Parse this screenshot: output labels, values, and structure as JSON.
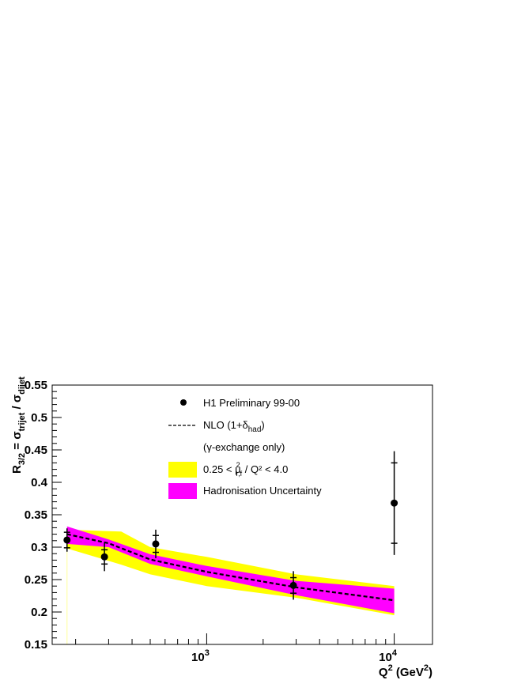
{
  "chart_data": {
    "type": "scatter",
    "title": "",
    "xlabel": {
      "main": "Q",
      "sup": "2",
      "unit": " (GeV",
      "unit_sup": "2",
      "close": ")"
    },
    "ylabel": {
      "main": "R",
      "main_sub": "3/2",
      "eq": " = σ",
      "num_sub": "trijet",
      "slash": " / σ",
      "den_sub": "dijet"
    },
    "x_scale": "log",
    "xlim": [
      150,
      16000
    ],
    "ylim": [
      0.15,
      0.55
    ],
    "y_ticks": [
      "0.15",
      "0.2",
      "0.25",
      "0.3",
      "0.35",
      "0.4",
      "0.45",
      "0.5",
      "0.55"
    ],
    "x_ticks": [
      {
        "value": 1000,
        "base": "10",
        "exp": "3"
      },
      {
        "value": 10000,
        "base": "10",
        "exp": "4"
      }
    ],
    "grid": false,
    "legend_position": "top",
    "series": [
      {
        "name": "H1 Preliminary 99-00",
        "type": "points",
        "x": [
          180,
          285,
          535,
          2900,
          10000
        ],
        "y": [
          0.311,
          0.285,
          0.305,
          0.241,
          0.368
        ],
        "err_stat": [
          0.012,
          0.011,
          0.013,
          0.012,
          0.062
        ],
        "err_tot": [
          0.018,
          0.022,
          0.022,
          0.022,
          0.08
        ]
      },
      {
        "name": "NLO (1+δ",
        "name_sub": "had",
        "name_close": ")",
        "type": "dashed-line",
        "x": [
          180,
          300,
          500,
          1000,
          3000,
          10000
        ],
        "y": [
          0.32,
          0.306,
          0.281,
          0.262,
          0.238,
          0.218
        ]
      },
      {
        "name": "0.25 < μ",
        "name_sup": "2",
        "name_sub": "r,f",
        "name_rest": " / Q² < 4.0",
        "type": "band",
        "color": "#ffff00",
        "x": [
          180,
          350,
          500,
          1000,
          3000,
          10000
        ],
        "upper": [
          0.327,
          0.324,
          0.3,
          0.285,
          0.258,
          0.24
        ],
        "lower": [
          0.298,
          0.273,
          0.258,
          0.24,
          0.222,
          0.195
        ]
      },
      {
        "name": "Hadronisation Uncertainty",
        "type": "band",
        "color": "#ff00ff",
        "x": [
          180,
          300,
          500,
          1000,
          3000,
          10000
        ],
        "upper": [
          0.332,
          0.312,
          0.289,
          0.271,
          0.248,
          0.236
        ],
        "lower": [
          0.305,
          0.3,
          0.274,
          0.255,
          0.226,
          0.198
        ]
      }
    ],
    "legend_note": "(γ-exchange only)"
  }
}
